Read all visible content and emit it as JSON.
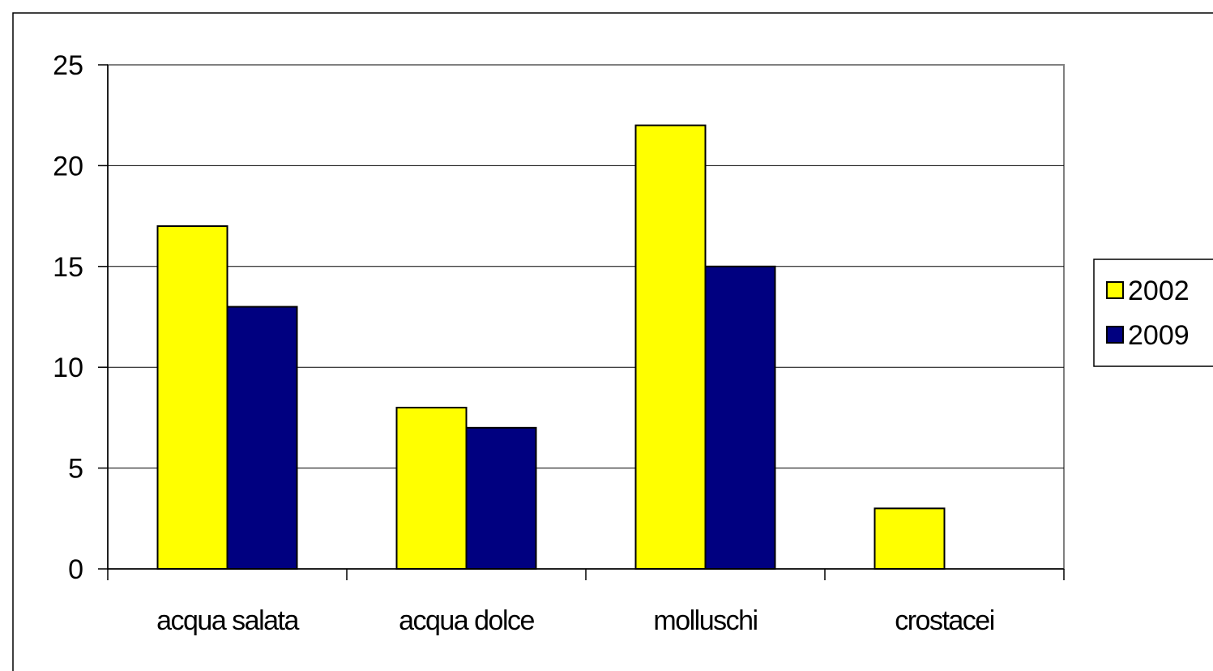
{
  "chart_data": {
    "type": "bar",
    "title": "",
    "xlabel": "",
    "ylabel": "",
    "categories": [
      "acqua salata",
      "acqua dolce",
      "molluschi",
      "crostacei"
    ],
    "series": [
      {
        "name": "2002",
        "values": [
          17,
          8,
          22,
          3
        ],
        "color": "#ffff00"
      },
      {
        "name": "2009",
        "values": [
          13,
          7,
          15,
          0
        ],
        "color": "#000080"
      }
    ],
    "ylim": [
      0,
      25
    ],
    "yticks": [
      0,
      5,
      10,
      15,
      20,
      25
    ],
    "grid": true,
    "legend_position": "right"
  }
}
